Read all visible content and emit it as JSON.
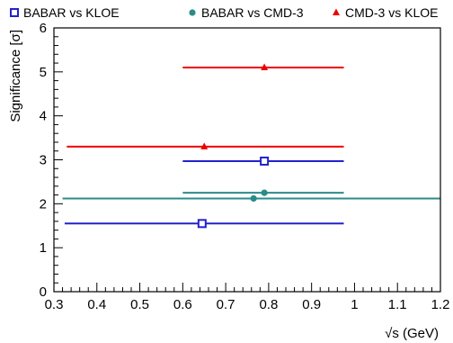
{
  "chart_data": {
    "type": "scatter",
    "title": "",
    "xlabel": "√s (GeV)",
    "ylabel": "Significance [σ]",
    "xlim": [
      0.3,
      1.2
    ],
    "ylim": [
      0,
      6
    ],
    "x_ticks": [
      "0.3",
      "0.4",
      "0.5",
      "0.6",
      "0.7",
      "0.8",
      "0.9",
      "1",
      "1.1",
      "1.2"
    ],
    "y_ticks": [
      "0",
      "1",
      "2",
      "3",
      "4",
      "5",
      "6"
    ],
    "grid": false,
    "legend_position": "top",
    "series": [
      {
        "name": "BABAR vs KLOE",
        "marker": "open-square",
        "color": "#2222cc",
        "points": [
          {
            "x": 0.645,
            "y": 1.55,
            "xmin": 0.325,
            "xmax": 0.975
          },
          {
            "x": 0.79,
            "y": 2.97,
            "xmin": 0.6,
            "xmax": 0.975
          }
        ]
      },
      {
        "name": "BABAR vs CMD-3",
        "marker": "filled-circle",
        "color": "#2a8c88",
        "points": [
          {
            "x": 0.765,
            "y": 2.12,
            "xmin": 0.32,
            "xmax": 1.2
          },
          {
            "x": 0.79,
            "y": 2.25,
            "xmin": 0.6,
            "xmax": 0.975
          }
        ]
      },
      {
        "name": "CMD-3 vs KLOE",
        "marker": "filled-triangle",
        "color": "#ee0000",
        "points": [
          {
            "x": 0.65,
            "y": 3.3,
            "xmin": 0.33,
            "xmax": 0.975
          },
          {
            "x": 0.79,
            "y": 5.1,
            "xmin": 0.6,
            "xmax": 0.975
          }
        ]
      }
    ]
  }
}
